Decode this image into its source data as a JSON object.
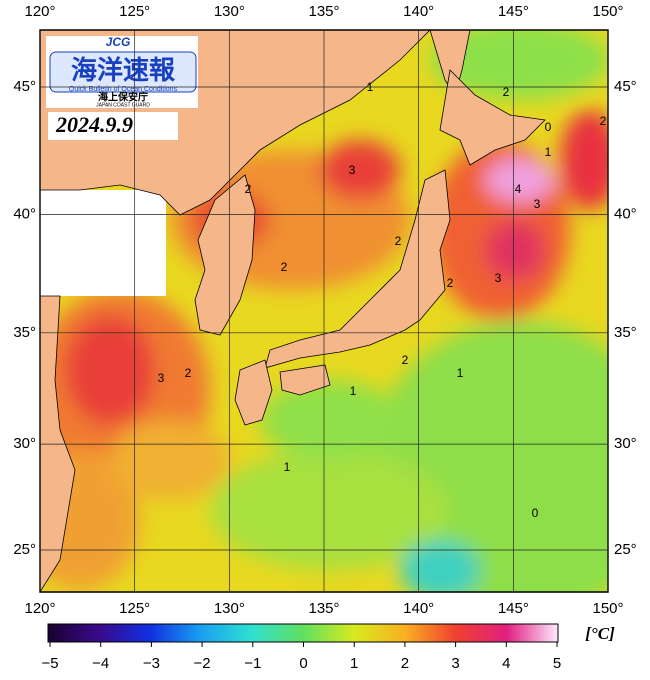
{
  "header": {
    "logo_mark": "JCG",
    "logo_title": "海洋速報",
    "logo_subtitle": "Quick Bulletin of Ocean Conditions",
    "logo_agency": "海上保安庁",
    "logo_agency_en": "JAPAN COAST GUARD",
    "date": "2024.9.9"
  },
  "map": {
    "lon_ticks": [
      {
        "value": 120,
        "label": "120°"
      },
      {
        "value": 125,
        "label": "125°"
      },
      {
        "value": 130,
        "label": "130°"
      },
      {
        "value": 135,
        "label": "135°"
      },
      {
        "value": 140,
        "label": "140°"
      },
      {
        "value": 145,
        "label": "145°"
      },
      {
        "value": 150,
        "label": "150°"
      }
    ],
    "lat_ticks": [
      {
        "value": 25,
        "label": "25°"
      },
      {
        "value": 30,
        "label": "30°"
      },
      {
        "value": 35,
        "label": "35°"
      },
      {
        "value": 40,
        "label": "40°"
      },
      {
        "value": 45,
        "label": "45°"
      }
    ],
    "contour_labels": [
      1,
      2,
      0,
      2,
      1,
      3,
      4,
      3,
      2,
      2,
      2,
      3,
      2,
      3,
      2,
      2,
      1,
      1,
      1,
      0
    ]
  },
  "colorbar": {
    "ticks": [
      {
        "value": -5,
        "label": "−5"
      },
      {
        "value": -4,
        "label": "−4"
      },
      {
        "value": -3,
        "label": "−3"
      },
      {
        "value": -2,
        "label": "−2"
      },
      {
        "value": -1,
        "label": "−1"
      },
      0,
      1,
      2,
      3,
      4,
      5
    ],
    "unit": "[°C]"
  }
}
